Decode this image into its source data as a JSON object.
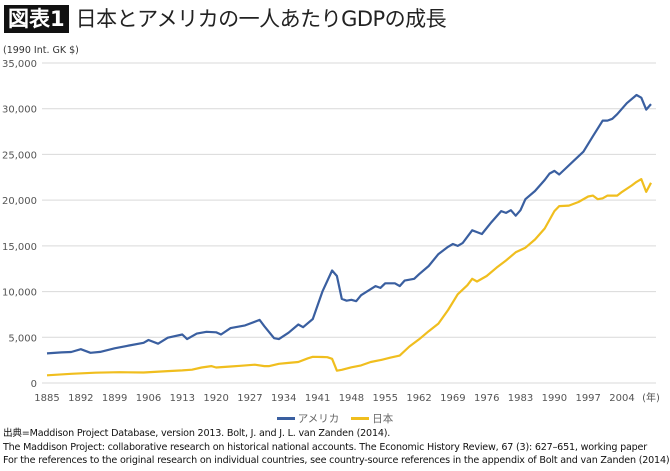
{
  "header": {
    "badge": "図表1",
    "title": "日本とアメリカの一人あたりGDPの成長"
  },
  "chart_data": {
    "type": "line",
    "title": "日本とアメリカの一人あたりGDPの成長",
    "ylabel": "(1990 Int. GK $)",
    "xlabel": "(年)",
    "ylim": [
      0,
      35000
    ],
    "xlim": [
      1885,
      2010
    ],
    "grid": true,
    "legend": "bottom",
    "yticks": [
      0,
      5000,
      10000,
      15000,
      20000,
      25000,
      30000,
      35000
    ],
    "ytick_labels": [
      "0",
      "5,000",
      "10,000",
      "15,000",
      "20,000",
      "25,000",
      "30,000",
      "35,000"
    ],
    "xticks": [
      1885,
      1892,
      1899,
      1906,
      1913,
      1920,
      1927,
      1934,
      1941,
      1948,
      1955,
      1962,
      1969,
      1976,
      1983,
      1990,
      1997,
      2004
    ],
    "xtick_labels": [
      "1885",
      "1892",
      "1899",
      "1906",
      "1913",
      "1920",
      "1927",
      "1934",
      "1941",
      "1948",
      "1955",
      "1962",
      "1969",
      "1976",
      "1983",
      "1990",
      "1997",
      "2004"
    ],
    "series": [
      {
        "name": "アメリカ",
        "color": "#3a5fa0",
        "x": [
          1885,
          1888,
          1890,
          1892,
          1894,
          1896,
          1899,
          1902,
          1905,
          1906,
          1908,
          1910,
          1913,
          1914,
          1916,
          1918,
          1920,
          1921,
          1923,
          1926,
          1929,
          1930,
          1932,
          1933,
          1935,
          1937,
          1938,
          1940,
          1942,
          1944,
          1945,
          1946,
          1947,
          1948,
          1949,
          1950,
          1953,
          1954,
          1955,
          1957,
          1958,
          1959,
          1961,
          1962,
          1964,
          1966,
          1968,
          1969,
          1970,
          1971,
          1973,
          1974,
          1975,
          1977,
          1979,
          1980,
          1981,
          1982,
          1983,
          1984,
          1986,
          1988,
          1989,
          1990,
          1991,
          1992,
          1994,
          1996,
          1998,
          2000,
          2001,
          2002,
          2003,
          2005,
          2007,
          2008,
          2009,
          2010
        ],
        "y": [
          3240,
          3350,
          3390,
          3700,
          3300,
          3400,
          3800,
          4100,
          4400,
          4700,
          4300,
          4960,
          5300,
          4800,
          5400,
          5600,
          5550,
          5300,
          6000,
          6300,
          6900,
          6200,
          4900,
          4800,
          5500,
          6400,
          6100,
          7000,
          10000,
          12300,
          11700,
          9200,
          9000,
          9100,
          8950,
          9600,
          10600,
          10400,
          10900,
          10900,
          10600,
          11200,
          11400,
          11900,
          12800,
          14100,
          14900,
          15200,
          15000,
          15300,
          16700,
          16500,
          16300,
          17600,
          18800,
          18600,
          18900,
          18300,
          18900,
          20100,
          21000,
          22200,
          22900,
          23200,
          22800,
          23300,
          24300,
          25300,
          27000,
          28700,
          28700,
          28900,
          29400,
          30600,
          31500,
          31200,
          29900,
          30500
        ]
      },
      {
        "name": "日本",
        "color": "#f0be1e",
        "x": [
          1885,
          1890,
          1895,
          1900,
          1905,
          1910,
          1913,
          1915,
          1917,
          1919,
          1920,
          1923,
          1925,
          1928,
          1930,
          1931,
          1933,
          1935,
          1937,
          1939,
          1940,
          1942,
          1943,
          1944,
          1945,
          1946,
          1948,
          1950,
          1952,
          1954,
          1956,
          1958,
          1960,
          1962,
          1964,
          1966,
          1968,
          1970,
          1972,
          1973,
          1974,
          1976,
          1978,
          1980,
          1982,
          1984,
          1986,
          1988,
          1990,
          1991,
          1993,
          1995,
          1997,
          1998,
          1999,
          2000,
          2001,
          2003,
          2004,
          2006,
          2007,
          2008,
          2009,
          2010
        ],
        "y": [
          840,
          1010,
          1130,
          1180,
          1150,
          1300,
          1380,
          1450,
          1700,
          1850,
          1700,
          1800,
          1880,
          2000,
          1850,
          1850,
          2100,
          2200,
          2300,
          2700,
          2870,
          2840,
          2820,
          2650,
          1350,
          1440,
          1720,
          1920,
          2300,
          2500,
          2770,
          3000,
          3990,
          4780,
          5670,
          6500,
          7980,
          9700,
          10700,
          11400,
          11100,
          11700,
          12600,
          13400,
          14300,
          14800,
          15700,
          16900,
          18800,
          19350,
          19400,
          19800,
          20400,
          20500,
          20100,
          20200,
          20500,
          20500,
          20900,
          21600,
          22000,
          22300,
          20900,
          21900
        ]
      }
    ]
  },
  "source": {
    "line1": "出典=Maddison Project Database, version 2013. Bolt, J. and J. L. van Zanden (2014).",
    "line2": "The Maddison Project: collaborative research on historical national accounts. The Economic History Review, 67 (3): 627–651, working paper",
    "line3": "For the references to the original research on individual countries, see country-source references in the appendix of Bolt and van Zanden (2014)."
  }
}
